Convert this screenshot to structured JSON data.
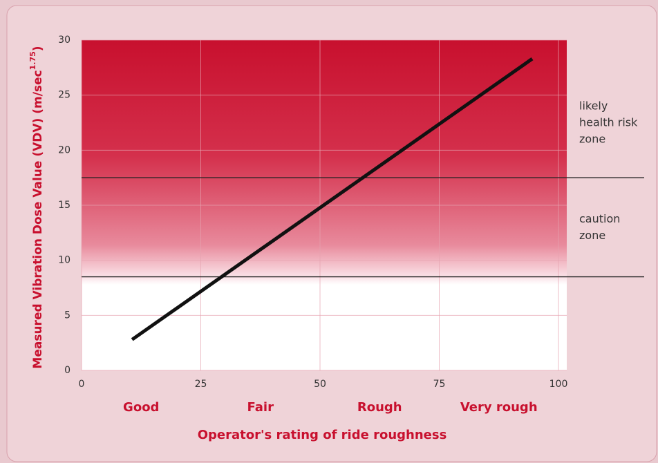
{
  "chart_data": {
    "type": "line",
    "y_label": "Measured Vibration Dose Value (VDV) (m/sec",
    "y_label_superscript": "1.75",
    "y_label_suffix": ")",
    "x_label": "Operator's rating of ride roughness",
    "x_categories": [
      "Good",
      "Fair",
      "Rough",
      "Very rough"
    ],
    "x": [
      10.6,
      94.5
    ],
    "series": [
      {
        "color": "#111111",
        "values": [
          2.8,
          28.3
        ]
      }
    ],
    "xlim": [
      0,
      100
    ],
    "xticks": [
      0,
      25,
      50,
      75,
      100
    ],
    "ylim": [
      0,
      30
    ],
    "yticks": [
      0,
      5,
      10,
      15,
      20,
      25,
      30
    ],
    "grid": true,
    "thresholds": [
      17.5,
      8.5
    ],
    "zone_labels": [
      [
        "likely",
        "health risk",
        "zone"
      ],
      [
        "caution",
        "zone"
      ]
    ]
  }
}
